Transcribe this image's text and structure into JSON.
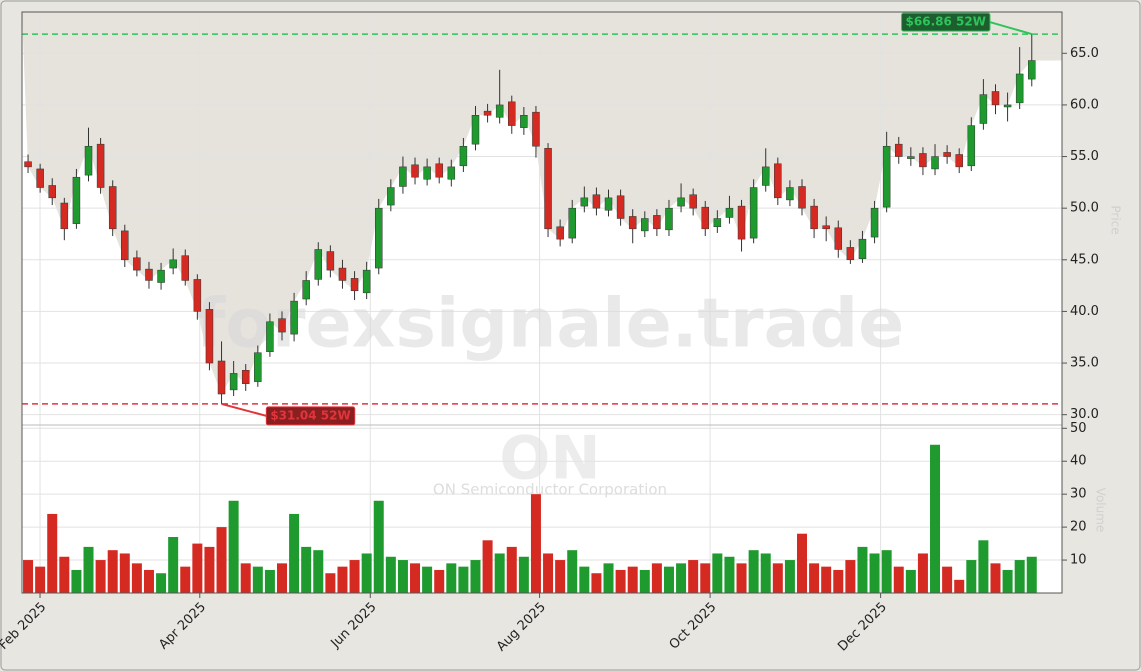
{
  "chart_data": {
    "type": "candlestick",
    "watermark": "forexsignale.trade",
    "symbol": "ON",
    "company": "ON Semiconductor Corporation",
    "price_label": "Price",
    "volume_label": "Volume",
    "up_color": "#1e9a2e",
    "down_color": "#d42a22",
    "area_color": "#e6e3dd",
    "grid": true,
    "xlim": [
      -0.5,
      85.5
    ],
    "xticks": [
      {
        "value": 0.99,
        "label": "Feb 2025"
      },
      {
        "value": 14.2,
        "label": "Apr 2025"
      },
      {
        "value": 28.3,
        "label": "Jun 2025"
      },
      {
        "value": 42.3,
        "label": "Aug 2025"
      },
      {
        "value": 56.4,
        "label": "Oct 2025"
      },
      {
        "value": 70.5,
        "label": "Dec 2025"
      }
    ],
    "open": [
      54.5,
      53.8,
      52.2,
      50.5,
      48.5,
      53.2,
      56.2,
      52.1,
      47.8,
      45.2,
      44.1,
      42.8,
      44.2,
      45.4,
      43.1,
      40.2,
      35.2,
      32.4,
      34.3,
      33.2,
      36.1,
      39.3,
      37.8,
      41.2,
      43.1,
      45.8,
      44.2,
      43.2,
      41.8,
      44.2,
      50.3,
      52.1,
      54.2,
      52.8,
      54.3,
      52.8,
      54.1,
      56.2,
      59.4,
      58.8,
      60.3,
      57.8,
      59.3,
      55.8,
      48.2,
      47.1,
      50.2,
      51.3,
      49.8,
      51.2,
      49.2,
      47.8,
      49.3,
      47.9,
      50.2,
      51.3,
      50.1,
      48.2,
      49.1,
      50.2,
      47.1,
      52.2,
      54.3,
      50.8,
      52.1,
      50.2,
      48.3,
      48.1,
      46.2,
      45.1,
      47.2,
      50.1,
      56.2,
      54.8,
      55.3,
      53.8,
      55.4,
      55.2,
      54.1,
      58.2,
      61.3,
      59.8,
      60.2,
      62.5
    ],
    "high": [
      55.2,
      54.3,
      52.9,
      51.0,
      53.8,
      57.8,
      56.8,
      52.7,
      48.4,
      45.9,
      44.8,
      44.7,
      46.1,
      46.0,
      43.6,
      40.9,
      37.1,
      35.2,
      34.9,
      36.7,
      39.8,
      40.0,
      41.8,
      43.9,
      46.7,
      46.4,
      45.0,
      43.9,
      44.8,
      50.9,
      52.8,
      55.0,
      54.9,
      54.8,
      54.9,
      54.7,
      56.8,
      59.9,
      60.1,
      63.4,
      60.9,
      59.8,
      59.9,
      56.3,
      48.9,
      50.8,
      52.1,
      52.0,
      51.8,
      51.8,
      49.9,
      49.7,
      49.9,
      50.8,
      52.4,
      51.9,
      50.7,
      49.8,
      51.2,
      50.8,
      52.8,
      55.8,
      54.9,
      52.7,
      52.8,
      50.9,
      49.2,
      48.8,
      46.9,
      47.8,
      50.7,
      57.4,
      56.9,
      55.9,
      55.9,
      56.2,
      56.1,
      55.8,
      58.8,
      62.5,
      62.0,
      61.2,
      65.6,
      66.86
    ],
    "low": [
      53.4,
      51.5,
      50.3,
      46.9,
      48.0,
      52.6,
      51.4,
      47.3,
      44.3,
      43.4,
      42.2,
      42.1,
      43.6,
      42.5,
      39.2,
      34.3,
      31.04,
      31.8,
      32.3,
      32.7,
      35.6,
      37.2,
      37.1,
      40.6,
      42.5,
      43.3,
      42.2,
      41.1,
      41.2,
      43.6,
      49.7,
      51.4,
      52.3,
      52.2,
      52.4,
      52.1,
      53.5,
      55.6,
      58.3,
      58.2,
      57.2,
      57.1,
      54.9,
      47.2,
      46.3,
      46.6,
      49.6,
      49.3,
      49.2,
      48.3,
      46.6,
      47.2,
      47.3,
      47.3,
      49.6,
      49.3,
      47.3,
      47.6,
      48.5,
      45.8,
      46.6,
      51.6,
      50.3,
      50.2,
      49.3,
      47.1,
      46.8,
      45.2,
      44.6,
      44.7,
      46.6,
      49.6,
      54.3,
      54.1,
      53.2,
      53.2,
      54.3,
      53.4,
      53.6,
      57.6,
      59.1,
      58.4,
      59.6,
      61.8
    ],
    "close": [
      54,
      52,
      51,
      48,
      53,
      56,
      52,
      48,
      45,
      44,
      43,
      44,
      45,
      43,
      40,
      35,
      32,
      34,
      33,
      36,
      39,
      38,
      41,
      43,
      46,
      44,
      43,
      42,
      44,
      50,
      52,
      54,
      53,
      54,
      53,
      54,
      56,
      59,
      59,
      60,
      58,
      59,
      56,
      48,
      47,
      50,
      51,
      50,
      51,
      49,
      48,
      49,
      48,
      50,
      51,
      50,
      48,
      49,
      50,
      47,
      52,
      54,
      51,
      52,
      50,
      48,
      48,
      46,
      45,
      47,
      50,
      56,
      55,
      55,
      54,
      55,
      55,
      54,
      58,
      61,
      60,
      60,
      63,
      64.3
    ],
    "ylim": [
      29,
      69
    ],
    "yticks": [
      {
        "value": 30,
        "label": "30.0"
      },
      {
        "value": 35,
        "label": "35.0"
      },
      {
        "value": 40,
        "label": "40.0"
      },
      {
        "value": 45,
        "label": "45.0"
      },
      {
        "value": 50,
        "label": "50.0"
      },
      {
        "value": 55,
        "label": "55.0"
      },
      {
        "value": 60,
        "label": "60.0"
      },
      {
        "value": 65,
        "label": "65.0"
      }
    ],
    "volume": {
      "values": [
        10,
        8,
        24,
        11,
        7,
        14,
        10,
        13,
        12,
        9,
        7,
        6,
        17,
        8,
        15,
        14,
        20,
        28,
        9,
        8,
        7,
        9,
        24,
        14,
        13,
        6,
        8,
        10,
        12,
        28,
        11,
        10,
        9,
        8,
        7,
        9,
        8,
        10,
        16,
        12,
        14,
        11,
        30,
        12,
        10,
        13,
        8,
        6,
        9,
        7,
        8,
        7,
        9,
        8,
        9,
        10,
        9,
        12,
        11,
        9,
        13,
        12,
        9,
        10,
        18,
        9,
        8,
        7,
        10,
        14,
        12,
        13,
        8,
        7,
        12,
        45,
        8,
        4,
        10,
        16,
        9,
        7,
        10,
        11
      ],
      "ylim": [
        0,
        51
      ],
      "yticks": [
        10,
        20,
        30,
        40,
        50
      ]
    },
    "reference_lines": [
      {
        "value": 66.86,
        "label": "$66.86 52W",
        "color": "#2ec45a"
      },
      {
        "value": 31.04,
        "label": "$31.04 52W",
        "color": "#e0353a"
      }
    ]
  }
}
